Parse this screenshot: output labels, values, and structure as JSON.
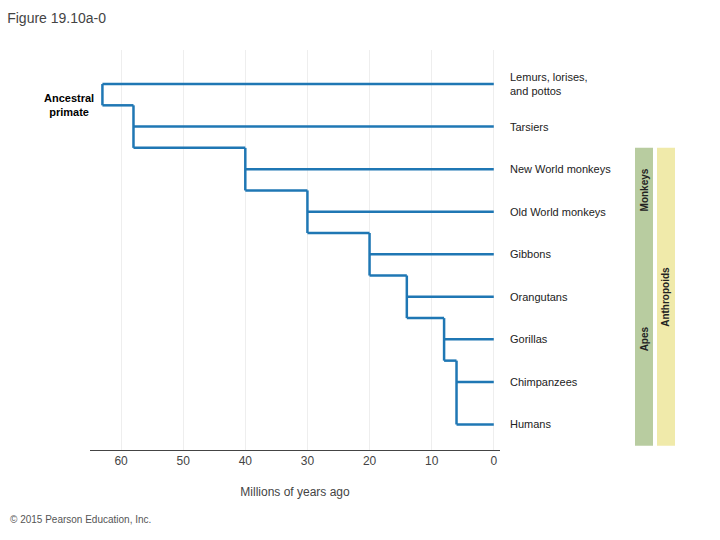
{
  "chart_data": {
    "type": "cladogram",
    "title": "Figure 19.10a-0",
    "xlabel": "Millions of years ago",
    "categories": [
      "Lemurs, lorises,\nand pottos",
      "Tarsiers",
      "New World monkeys",
      "Old World monkeys",
      "Gibbons",
      "Orangutans",
      "Gorillas",
      "Chimpanzees",
      "Humans"
    ],
    "values": [
      63,
      58,
      40,
      30,
      20,
      14,
      8,
      6,
      6
    ],
    "xlim": [
      65,
      -1
    ],
    "xticks": [
      0,
      10,
      20,
      30,
      40,
      50,
      60
    ],
    "grid": true,
    "tick_labels": "x",
    "annotations": [
      {
        "text": "Ancestral\nprimate",
        "x": 63
      },
      {
        "text": "Monkeys",
        "categories": [
          "New World monkeys",
          "Old World monkeys"
        ],
        "color": "#b8cca0"
      },
      {
        "text": "Apes",
        "categories": [
          "Gibbons",
          "Orangutans",
          "Gorillas",
          "Chimpanzees",
          "Humans"
        ],
        "color": "#b8cca0"
      },
      {
        "text": "Anthropoids",
        "categories": [
          "New World monkeys",
          "Old World monkeys",
          "Gibbons",
          "Orangutans",
          "Gorillas",
          "Chimpanzees",
          "Humans"
        ],
        "color": "#f0eaaa"
      },
      {
        "text": "© 2015 Pearson Education, Inc."
      }
    ]
  }
}
